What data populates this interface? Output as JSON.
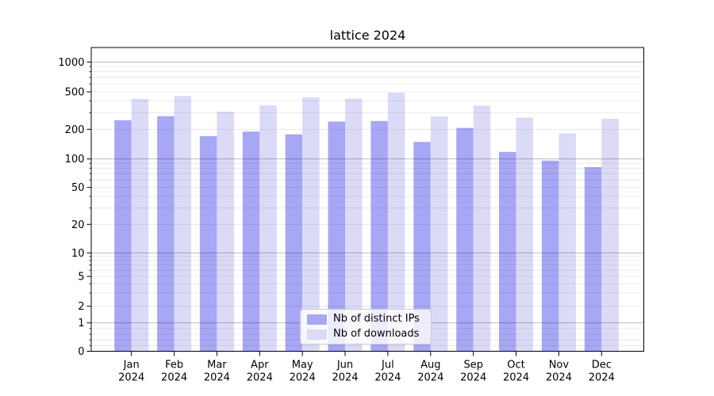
{
  "chart_data": {
    "type": "bar",
    "title": "lattice 2024",
    "categories": [
      "Jan",
      "Feb",
      "Mar",
      "Apr",
      "May",
      "Jun",
      "Jul",
      "Aug",
      "Sep",
      "Oct",
      "Nov",
      "Dec"
    ],
    "x_tick_year_line": "2024",
    "series": [
      {
        "name": "Nb of distinct IPs",
        "color": "#a7a7f5",
        "values": [
          250,
          276,
          171,
          190,
          178,
          242,
          245,
          149,
          207,
          118,
          96,
          82
        ]
      },
      {
        "name": "Nb of downloads",
        "color": "#dbdbf8",
        "values": [
          421,
          452,
          308,
          360,
          438,
          425,
          490,
          274,
          357,
          267,
          182,
          259
        ]
      }
    ],
    "y_axis": {
      "scale": "symlog",
      "ticks": [
        0,
        1,
        2,
        5,
        10,
        20,
        50,
        100,
        200,
        500,
        1000
      ],
      "top": 1000
    },
    "legend": {
      "position": "lower center inside"
    },
    "grid": {
      "major": true,
      "minor": true
    },
    "colors": {
      "background": "#ffffff",
      "text": "#000000",
      "spine": "#000000",
      "major_grid": "rgba(0,0,0,0.30)",
      "minor_grid": "rgba(0,0,0,0.10)"
    }
  }
}
